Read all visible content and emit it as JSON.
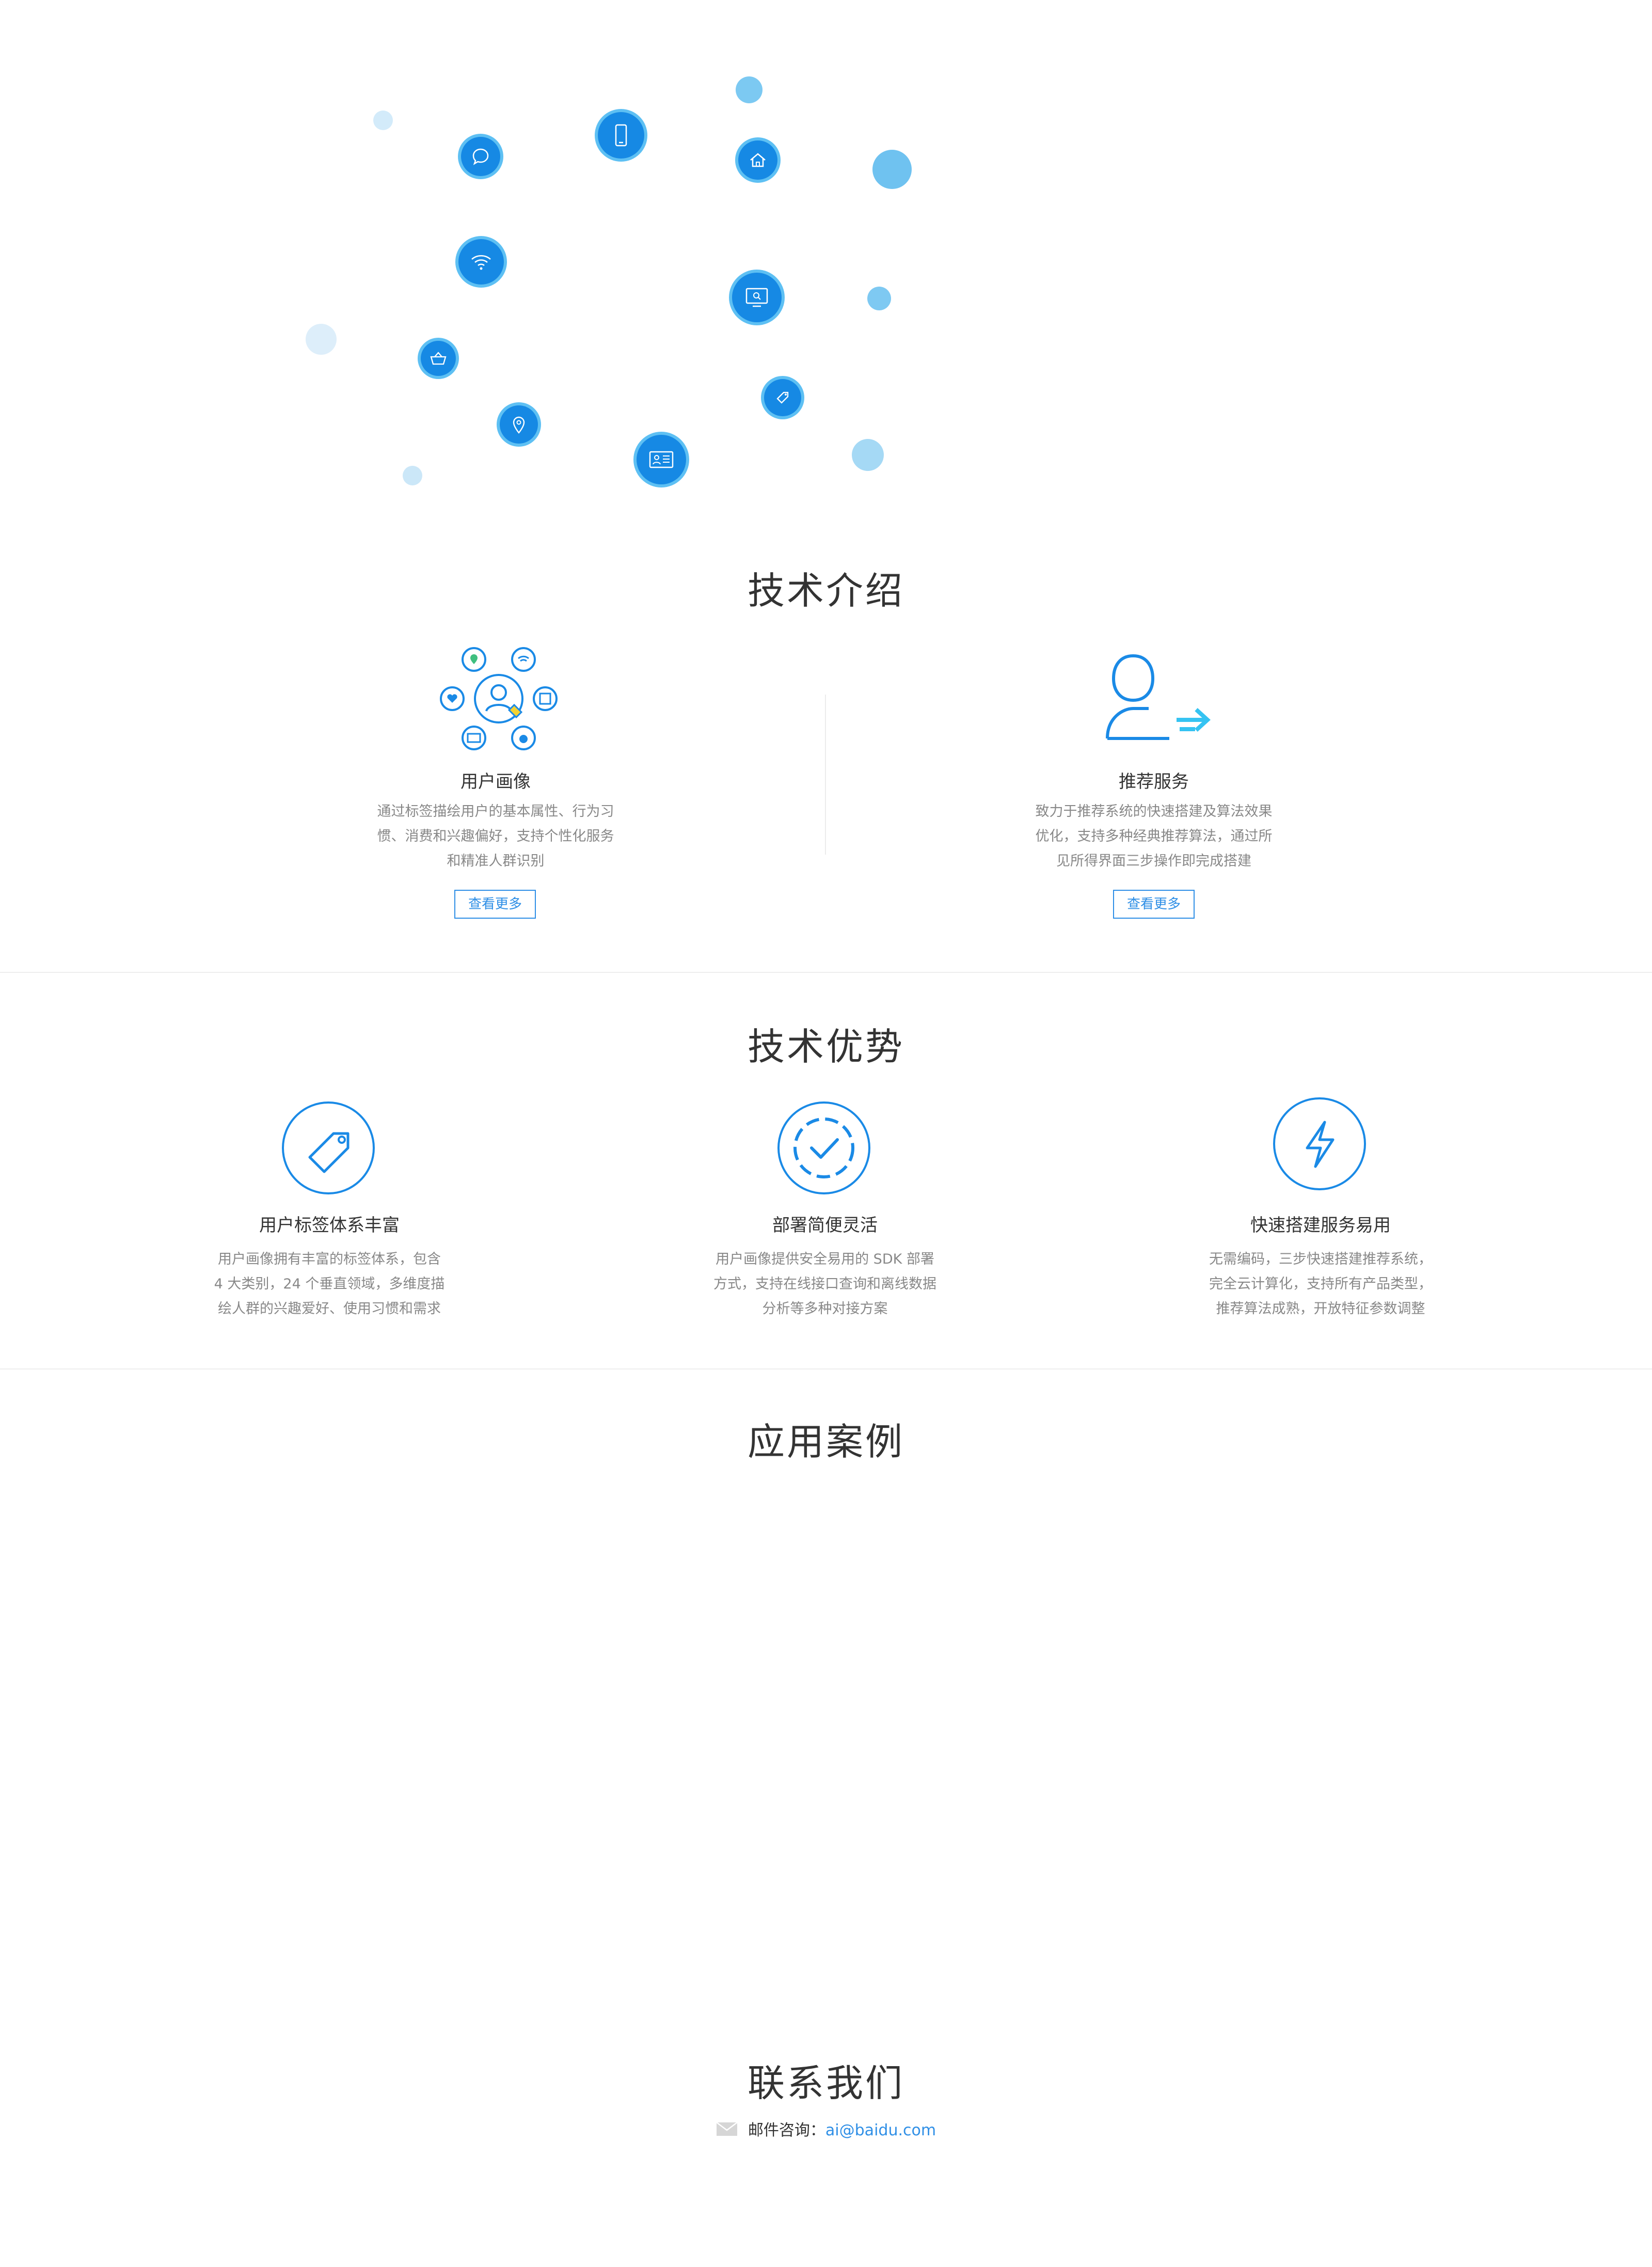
{
  "sections": {
    "intro_title": "技术介绍",
    "advantage_title": "技术优势",
    "cases_title": "应用案例",
    "contact_title": "联系我们"
  },
  "intro": {
    "cards": [
      {
        "title": "用户画像",
        "desc_lines": [
          "通过标签描绘用户的基本属性、行为习",
          "惯、消费和兴趣偏好，支持个性化服务",
          "和精准人群识别"
        ],
        "button": "查看更多",
        "icon": "user-portrait-icon"
      },
      {
        "title": "推荐服务",
        "desc_lines": [
          "致力于推荐系统的快速搭建及算法效果",
          "优化，支持多种经典推荐算法，通过所",
          "见所得界面三步操作即完成搭建"
        ],
        "button": "查看更多",
        "icon": "user-arrow-icon"
      }
    ]
  },
  "advantages": [
    {
      "title": "用户标签体系丰富",
      "desc_lines": [
        "用户画像拥有丰富的标签体系，包含",
        "4 大类别，24 个垂直领域，多维度描",
        "绘人群的兴趣爱好、使用习惯和需求"
      ],
      "icon": "tag-icon"
    },
    {
      "title": "部署简便灵活",
      "desc_lines": [
        "用户画像提供安全易用的 SDK 部署",
        "方式，支持在线接口查询和离线数据",
        "分析等多种对接方案"
      ],
      "icon": "check-circle-icon"
    },
    {
      "title": "快速搭建服务易用",
      "desc_lines": [
        "无需编码，三步快速搭建推荐系统，",
        "完全云计算化，支持所有产品类型，",
        "推荐算法成熟，开放特征参数调整"
      ],
      "icon": "lightning-icon"
    }
  ],
  "contact": {
    "label": "邮件咨询：",
    "email": "ai@baidu.com",
    "icon": "mail-icon"
  },
  "colors": {
    "accent": "#1a8ae6",
    "bubble": "#1689e4",
    "text": "#333333",
    "muted": "#888888"
  }
}
